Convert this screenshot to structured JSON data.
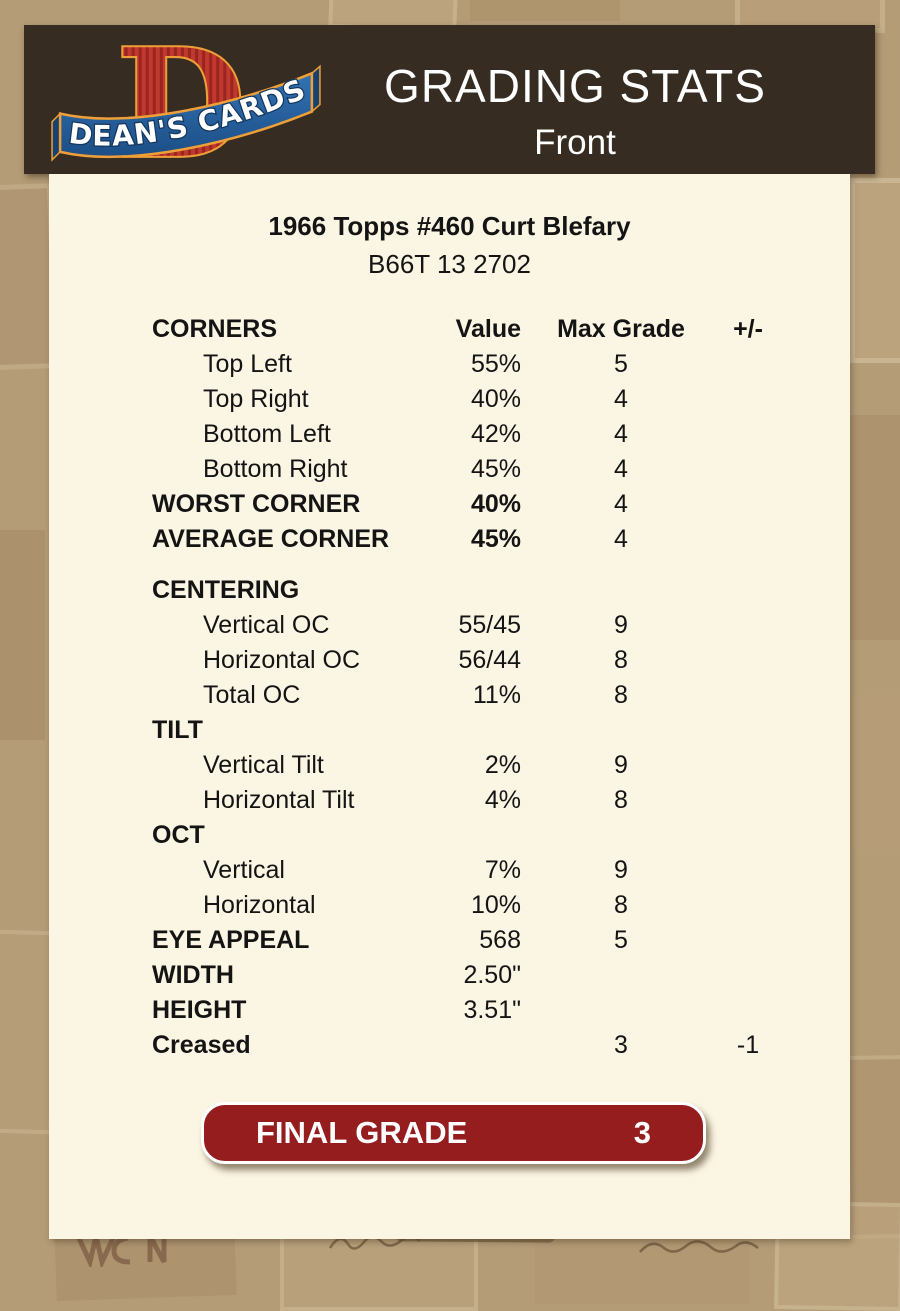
{
  "header": {
    "title": "GRADING STATS",
    "subtitle": "Front",
    "logo_letter": "D",
    "logo_text": "DEAN'S CARDS"
  },
  "card": {
    "title": "1966 Topps #460 Curt Blefary",
    "code": "B66T 13 2702"
  },
  "table": {
    "columns": [
      "CORNERS",
      "Value",
      "Max Grade",
      "+/-"
    ],
    "rows": [
      {
        "label": "Top Left",
        "value": "55%",
        "grade": "5",
        "indent": true
      },
      {
        "label": "Top Right",
        "value": "40%",
        "grade": "4",
        "indent": true
      },
      {
        "label": "Bottom Left",
        "value": "42%",
        "grade": "4",
        "indent": true
      },
      {
        "label": "Bottom Right",
        "value": "45%",
        "grade": "4",
        "indent": true
      },
      {
        "label": "WORST CORNER",
        "value": "40%",
        "grade": "4",
        "bold": true,
        "value_bold": true
      },
      {
        "label": "AVERAGE CORNER",
        "value": "45%",
        "grade": "4",
        "bold": true,
        "value_bold": true
      },
      {
        "label": "CENTERING",
        "bold": true,
        "section_gap": true
      },
      {
        "label": "Vertical OC",
        "value": "55/45",
        "grade": "9",
        "indent": true
      },
      {
        "label": "Horizontal OC",
        "value": "56/44",
        "grade": "8",
        "indent": true
      },
      {
        "label": "Total OC",
        "value": "11%",
        "grade": "8",
        "indent": true
      },
      {
        "label": "TILT",
        "bold": true
      },
      {
        "label": "Vertical Tilt",
        "value": "2%",
        "grade": "9",
        "indent": true
      },
      {
        "label": "Horizontal Tilt",
        "value": "4%",
        "grade": "8",
        "indent": true
      },
      {
        "label": "OCT",
        "bold": true
      },
      {
        "label": "Vertical",
        "value": "7%",
        "grade": "9",
        "indent": true
      },
      {
        "label": "Horizontal",
        "value": "10%",
        "grade": "8",
        "indent": true
      },
      {
        "label": "EYE APPEAL",
        "value": "568",
        "grade": "5",
        "bold": true
      },
      {
        "label": "WIDTH",
        "value": "2.50\"",
        "bold": true
      },
      {
        "label": "HEIGHT",
        "value": "3.51\"",
        "bold": true
      },
      {
        "label": "Creased",
        "grade": "3",
        "plus_minus": "-1",
        "bold": true
      }
    ]
  },
  "final_grade": {
    "label": "FINAL GRADE",
    "value": "3"
  },
  "colors": {
    "background_tan": "#B49C77",
    "header_bg": "#362C22",
    "panel_bg": "#FBF5E3",
    "text": "#141414",
    "button_red": "#951D1E",
    "logo_red": "#C0392F",
    "logo_blue": "#2766A7",
    "logo_gold": "#EE9F38"
  }
}
